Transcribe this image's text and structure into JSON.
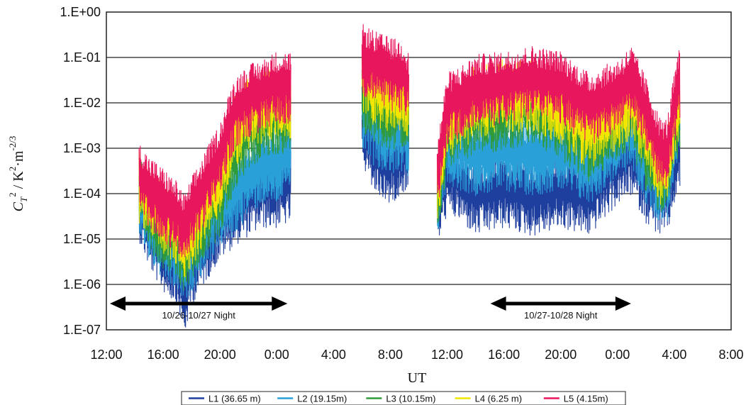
{
  "chart_data": {
    "type": "line",
    "title": "",
    "xlabel": "UT",
    "ylabel": "C_T^2 / K^2·m^-2/3",
    "ylabel_parts": {
      "c": "C",
      "sub": "T",
      "sup": "2",
      "rest": " / K",
      "rest_sup": "2",
      "dot": "·m",
      "m_sup": "-2/3"
    },
    "yscale": "log",
    "ylim": [
      1e-07,
      1
    ],
    "yticks": [
      {
        "v": 1.0,
        "label": "1.E+00"
      },
      {
        "v": 0.1,
        "label": "1.E-01"
      },
      {
        "v": 0.01,
        "label": "1.E-02"
      },
      {
        "v": 0.001,
        "label": "1.E-03"
      },
      {
        "v": 0.0001,
        "label": "1.E-04"
      },
      {
        "v": 1e-05,
        "label": "1.E-05"
      },
      {
        "v": 1e-06,
        "label": "1.E-06"
      },
      {
        "v": 1e-07,
        "label": "1.E-07"
      }
    ],
    "xticks": [
      "12:00",
      "16:00",
      "20:00",
      "0:00",
      "4:00",
      "8:00",
      "12:00",
      "16:00",
      "20:00",
      "0:00",
      "4:00",
      "8:00"
    ],
    "xlim_hours": [
      12,
      56
    ],
    "grid": "horizontal",
    "legend_position": "bottom",
    "annotations": [
      {
        "text": "10/26-10/27 Night",
        "x_from_hours": 12.0,
        "x_to_hours": 25.0
      },
      {
        "text": "10/27-10/28 Night",
        "x_from_hours": 38.8,
        "x_to_hours": 49.2
      }
    ],
    "segments_hours": [
      [
        14.3,
        25.0
      ],
      [
        30.0,
        33.3
      ],
      [
        35.3,
        52.4
      ]
    ],
    "series": [
      {
        "name": "L1 (36.65 m)",
        "color": "#1f3f9f",
        "x": [
          14.3,
          15,
          16,
          17,
          17.5,
          18,
          19,
          20,
          21,
          22,
          23,
          24,
          25,
          30,
          31,
          32,
          33,
          35.3,
          36,
          37,
          38,
          40,
          42,
          44,
          46,
          48,
          49,
          50,
          51,
          51.5,
          52,
          52.4
        ],
        "y": [
          8e-05,
          2e-05,
          6e-06,
          3e-06,
          6e-07,
          3e-06,
          1e-05,
          3e-05,
          6e-05,
          0.0001,
          0.00015,
          0.00015,
          0.0002,
          0.003,
          0.0008,
          0.0005,
          0.001,
          6e-05,
          0.0003,
          0.0002,
          0.0001,
          0.00015,
          0.0001,
          0.00015,
          0.0001,
          0.0005,
          0.0008,
          0.0002,
          0.0001,
          0.0001,
          0.0005,
          0.001
        ]
      },
      {
        "name": "L2 (19.15m)",
        "color": "#2aa0d8",
        "x": [
          14.3,
          15,
          16,
          17,
          17.5,
          18,
          19,
          20,
          21,
          22,
          23,
          24,
          25,
          30,
          31,
          32,
          33,
          35.3,
          36,
          37,
          38,
          40,
          42,
          44,
          46,
          48,
          49,
          50,
          51,
          51.5,
          52,
          52.4
        ],
        "y": [
          0.0001,
          3e-05,
          1e-05,
          6e-06,
          3e-06,
          6e-06,
          2e-05,
          6e-05,
          0.0001,
          0.0003,
          0.0005,
          0.0005,
          0.001,
          0.01,
          0.003,
          0.002,
          0.003,
          0.0001,
          0.0015,
          0.001,
          0.0008,
          0.001,
          0.0008,
          0.001,
          0.0005,
          0.002,
          0.003,
          0.0005,
          0.0002,
          0.0002,
          0.002,
          0.005
        ]
      },
      {
        "name": "L3 (10.15m)",
        "color": "#2e9a3a",
        "x": [
          14.3,
          15,
          16,
          17,
          17.5,
          18,
          19,
          20,
          21,
          22,
          23,
          24,
          25,
          30,
          31,
          32,
          33,
          35.3,
          36,
          37,
          38,
          40,
          42,
          44,
          46,
          48,
          49,
          50,
          51,
          51.5,
          52,
          52.4
        ],
        "y": [
          0.00015,
          5e-05,
          2e-05,
          1e-05,
          6e-06,
          1e-05,
          4e-05,
          0.0001,
          0.001,
          0.003,
          0.005,
          0.006,
          0.008,
          0.02,
          0.01,
          0.008,
          0.01,
          0.0001,
          0.003,
          0.005,
          0.006,
          0.008,
          0.01,
          0.005,
          0.0015,
          0.005,
          0.008,
          0.001,
          0.0003,
          0.0003,
          0.003,
          0.008
        ]
      },
      {
        "name": "L4 (6.25 m)",
        "color": "#f2e600",
        "x": [
          14.3,
          15,
          16,
          17,
          17.5,
          18,
          19,
          20,
          21,
          22,
          23,
          24,
          25,
          30,
          31,
          32,
          33,
          35.3,
          36,
          37,
          38,
          40,
          42,
          44,
          46,
          48,
          49,
          50,
          51,
          51.5,
          52,
          52.4
        ],
        "y": [
          0.0002,
          8e-05,
          4e-05,
          2e-05,
          1e-05,
          2e-05,
          8e-05,
          0.0003,
          0.003,
          0.008,
          0.01,
          0.015,
          0.015,
          0.05,
          0.025,
          0.02,
          0.02,
          0.0002,
          0.005,
          0.008,
          0.015,
          0.02,
          0.02,
          0.01,
          0.003,
          0.008,
          0.015,
          0.003,
          0.0005,
          0.0005,
          0.005,
          0.015
        ]
      },
      {
        "name": "L5 (4.15m)",
        "color": "#e8175d",
        "x": [
          14.3,
          15,
          16,
          17,
          17.5,
          18,
          19,
          20,
          21,
          22,
          23,
          24,
          25,
          30,
          31,
          32,
          33,
          35.3,
          36,
          37,
          38,
          40,
          42,
          44,
          46,
          48,
          49,
          50,
          51,
          51.5,
          52,
          52.4
        ],
        "y": [
          0.0003,
          0.00015,
          8e-05,
          4e-05,
          2e-05,
          5e-05,
          0.0002,
          0.0008,
          0.008,
          0.015,
          0.02,
          0.03,
          0.03,
          0.12,
          0.08,
          0.06,
          0.05,
          0.0003,
          0.01,
          0.015,
          0.025,
          0.03,
          0.04,
          0.03,
          0.01,
          0.02,
          0.04,
          0.008,
          0.001,
          0.001,
          0.01,
          0.04
        ]
      }
    ]
  }
}
